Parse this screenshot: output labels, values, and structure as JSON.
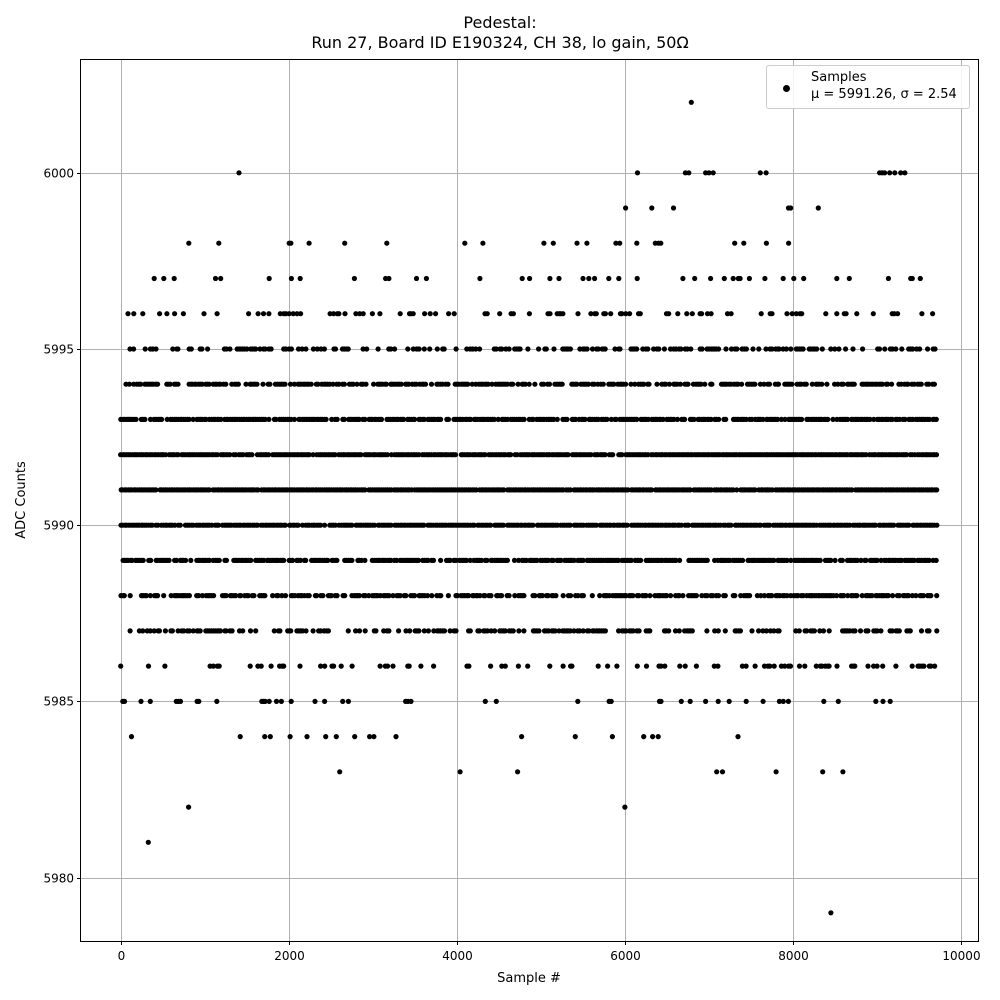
{
  "chart_data": {
    "type": "scatter",
    "title": "Pedestal:",
    "subtitle": "Run 27, Board ID E190324, CH 38, lo gain, 50Ω",
    "xlabel": "Sample #",
    "ylabel": "ADC Counts",
    "xlim": [
      -470,
      10200
    ],
    "ylim": [
      5978.2,
      6003.2
    ],
    "xticks": [
      0,
      2000,
      4000,
      6000,
      8000,
      10000
    ],
    "xtick_labels": [
      "0",
      "2000",
      "4000",
      "6000",
      "8000",
      "10000"
    ],
    "yticks": [
      5980,
      5985,
      5990,
      5995,
      6000
    ],
    "ytick_labels": [
      "5980",
      "5985",
      "5990",
      "5995",
      "6000"
    ],
    "grid": true,
    "legend_placement": "top-right",
    "legend": {
      "label": "Samples",
      "stats": "μ = 5991.26, σ = 2.54"
    },
    "marker_color": "#000000",
    "series": [
      {
        "name": "Samples",
        "levels": [
          {
            "y": 5993,
            "x_ranges": [
              [
                0,
                9710
              ]
            ]
          },
          {
            "y": 5992,
            "x_ranges": [
              [
                0,
                9710
              ]
            ]
          },
          {
            "y": 5991,
            "x_ranges": [
              [
                0,
                9710
              ]
            ]
          },
          {
            "y": 5990,
            "x_ranges": [
              [
                0,
                9710
              ]
            ]
          },
          {
            "y": 5989,
            "x_ranges": [
              [
                0,
                9710
              ]
            ]
          },
          {
            "y": 5994,
            "x_ranges": [
              [
                60,
                9710
              ]
            ]
          },
          {
            "y": 5988,
            "x_ranges": [
              [
                0,
                9710
              ]
            ]
          },
          {
            "y": 5995,
            "x_ranges": [
              [
                0,
                9710
              ]
            ]
          },
          {
            "y": 5987,
            "x_ranges": [
              [
                0,
                9710
              ]
            ]
          },
          {
            "y": 5996,
            "x_ranges": [
              [
                0,
                9710
              ]
            ]
          },
          {
            "y": 5986,
            "x_ranges": [
              [
                0,
                9710
              ]
            ]
          },
          {
            "y": 5997,
            "x_ranges": [
              [
                0,
                9710
              ]
            ]
          },
          {
            "y": 5985,
            "x_ranges": [
              [
                0,
                9710
              ]
            ]
          },
          {
            "y": 5998,
            "x_ranges": [
              [
                700,
                9710
              ]
            ]
          },
          {
            "y": 5984,
            "x_ranges": [
              [
                100,
                7940
              ]
            ]
          },
          {
            "y": 5983,
            "x_ranges": [
              [
                820,
                8720
              ]
            ]
          },
          {
            "y": 5999,
            "x_ranges": [
              [
                3850,
                9250
              ]
            ]
          }
        ],
        "points": [
          [
            330,
            5981
          ],
          [
            810,
            5982
          ],
          [
            6000,
            5982
          ],
          [
            8450,
            5979
          ],
          [
            6790,
            6002
          ],
          [
            1410,
            6000
          ],
          [
            6150,
            6000
          ],
          [
            6720,
            6000
          ],
          [
            6760,
            6000
          ],
          [
            6960,
            6000
          ],
          [
            7000,
            6000
          ],
          [
            7050,
            6000
          ],
          [
            7610,
            6000
          ],
          [
            7680,
            6000
          ],
          [
            9030,
            6000
          ],
          [
            9060,
            6000
          ],
          [
            9090,
            6000
          ],
          [
            9150,
            6000
          ],
          [
            9210,
            6000
          ],
          [
            9280,
            6000
          ],
          [
            9330,
            6000
          ]
        ]
      }
    ]
  }
}
